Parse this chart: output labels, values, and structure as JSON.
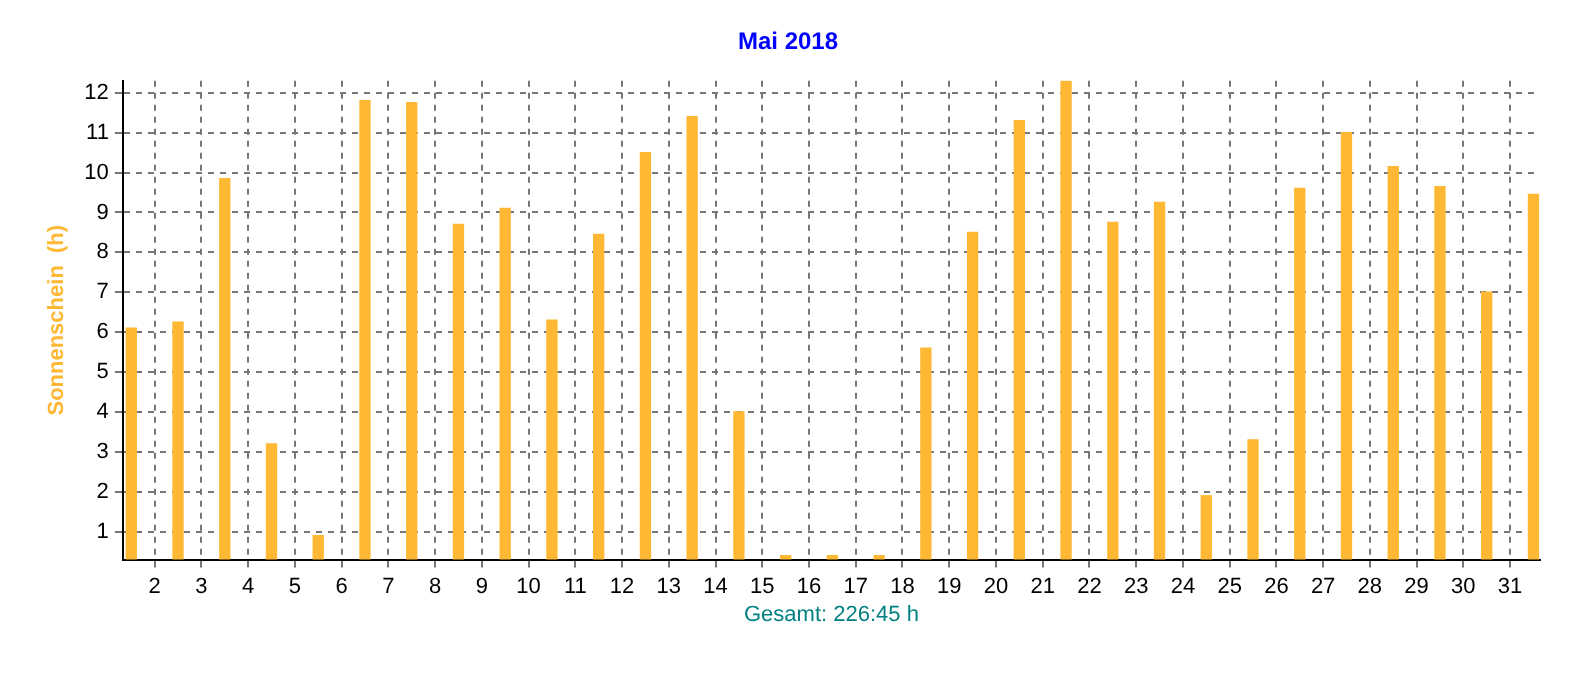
{
  "chart_data": {
    "type": "bar",
    "title": "Mai 2018",
    "ylabel": "Sonnenschein  (h)",
    "annotations": [
      "Gesamt: 226:45 h"
    ],
    "x": [
      1.5,
      2.5,
      3.5,
      4.5,
      5.5,
      6.5,
      7.5,
      8.5,
      9.5,
      10.5,
      11.5,
      12.5,
      13.5,
      14.5,
      15.5,
      16.5,
      17.5,
      18.5,
      19.5,
      20.5,
      21.5,
      22.5,
      23.5,
      24.5,
      25.5,
      26.5,
      27.5,
      28.5,
      29.5,
      30.5,
      31.5
    ],
    "values": [
      6.1,
      6.25,
      9.85,
      3.2,
      0.9,
      11.8,
      11.75,
      8.7,
      9.1,
      6.3,
      8.45,
      10.5,
      11.4,
      4.0,
      0.4,
      0.4,
      0.4,
      5.6,
      8.5,
      11.3,
      12.3,
      8.75,
      9.25,
      1.9,
      3.3,
      9.6,
      11.0,
      10.15,
      9.65,
      7.0,
      9.45
    ],
    "color": "#ffb833",
    "xlim": [
      1.32,
      31.64
    ],
    "xticks": [
      2,
      3,
      4,
      5,
      6,
      7,
      8,
      9,
      10,
      11,
      12,
      13,
      14,
      15,
      16,
      17,
      18,
      19,
      20,
      21,
      22,
      23,
      24,
      25,
      26,
      27,
      28,
      29,
      30,
      31
    ],
    "ylim": [
      0.3,
      12.3
    ],
    "yticks": [
      1,
      2,
      3,
      4,
      5,
      6,
      7,
      8,
      9,
      10,
      11,
      12
    ],
    "grid": true,
    "legend": false
  }
}
